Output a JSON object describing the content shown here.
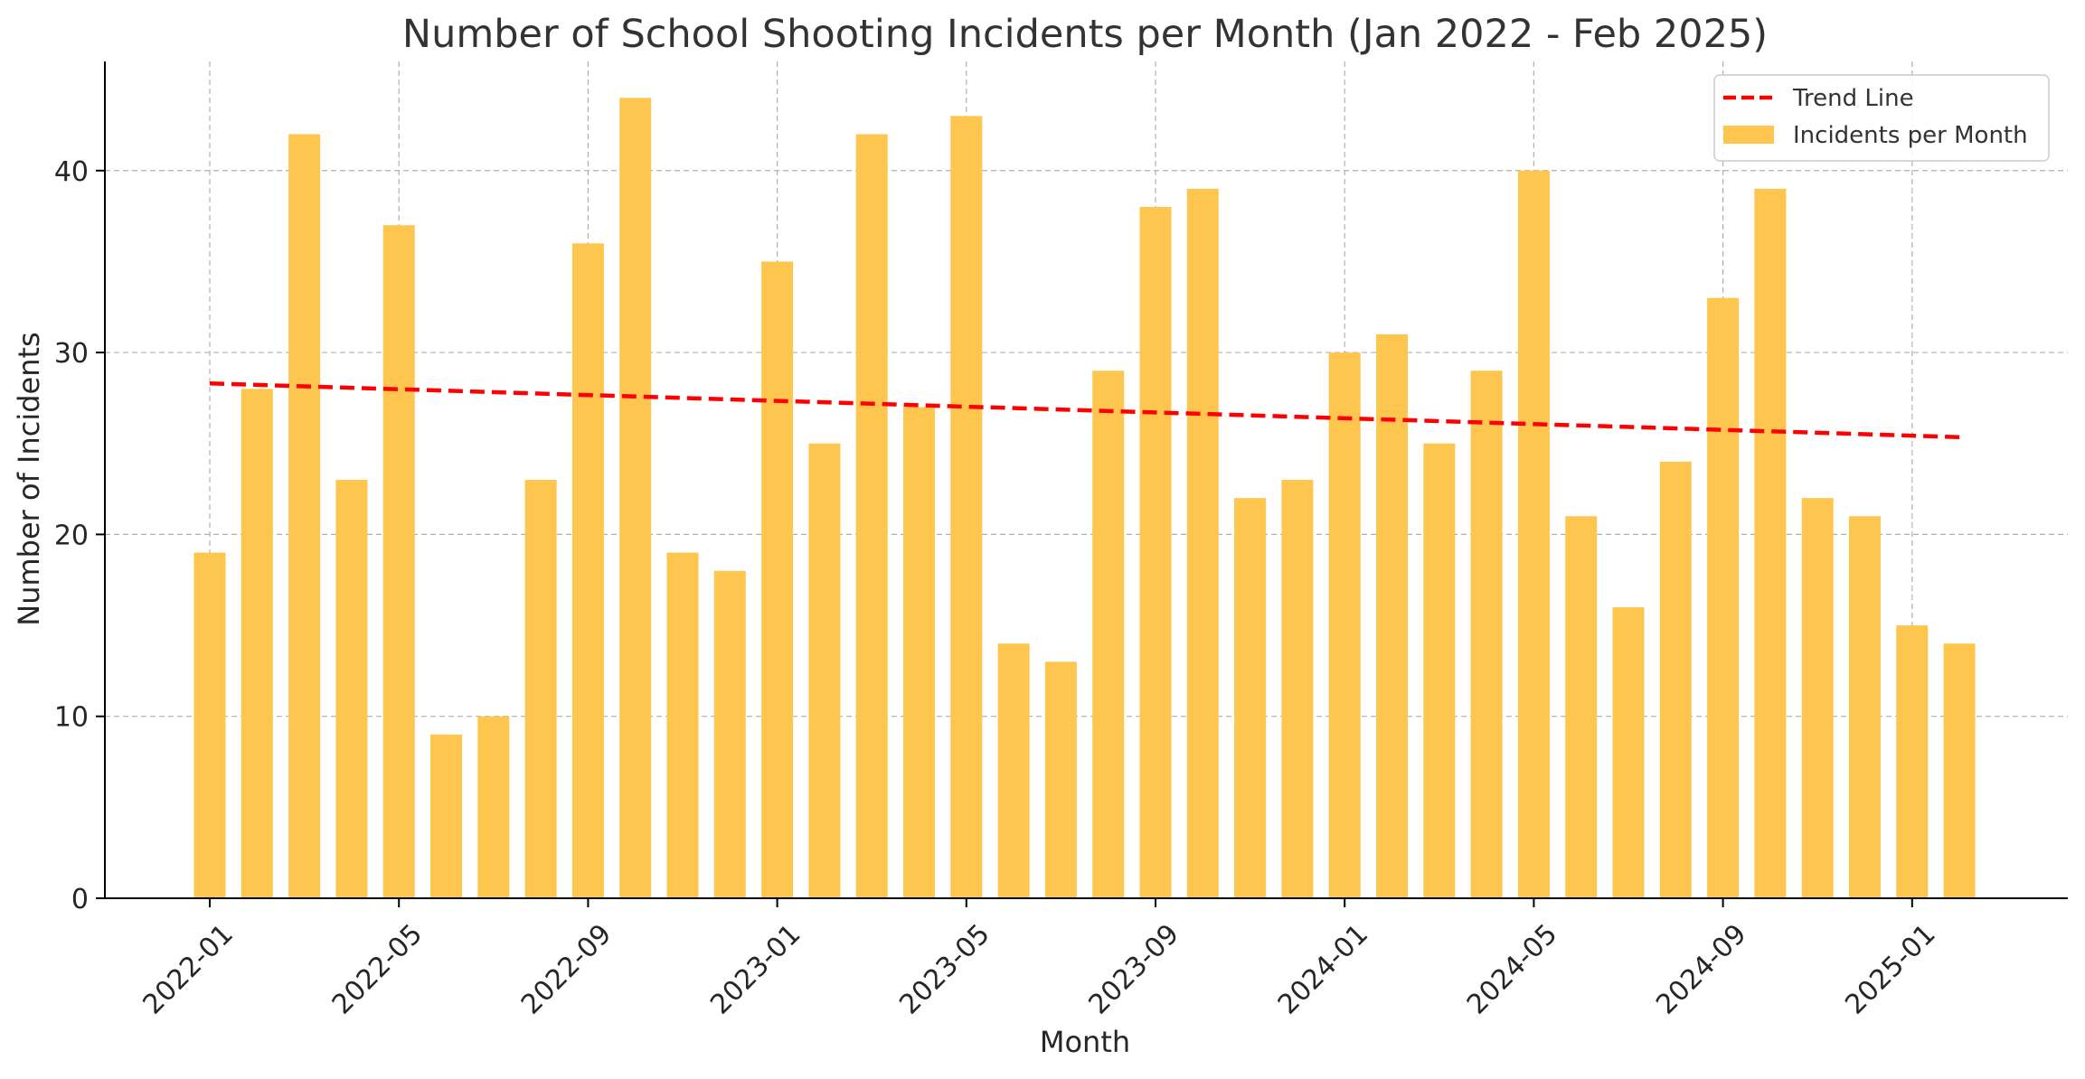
{
  "chart_data": {
    "type": "bar",
    "title": "Number of School Shooting Incidents per Month (Jan 2022 - Feb 2025)",
    "xlabel": "Month",
    "ylabel": "Number of Incidents",
    "ylim": [
      0,
      46
    ],
    "yticks": [
      0,
      10,
      20,
      30,
      40
    ],
    "grid": true,
    "legend_position": "top-right",
    "categories": [
      "2022-01",
      "2022-02",
      "2022-03",
      "2022-04",
      "2022-05",
      "2022-06",
      "2022-07",
      "2022-08",
      "2022-09",
      "2022-10",
      "2022-11",
      "2022-12",
      "2023-01",
      "2023-02",
      "2023-03",
      "2023-04",
      "2023-05",
      "2023-06",
      "2023-07",
      "2023-08",
      "2023-09",
      "2023-10",
      "2023-11",
      "2023-12",
      "2024-01",
      "2024-02",
      "2024-03",
      "2024-04",
      "2024-05",
      "2024-06",
      "2024-07",
      "2024-08",
      "2024-09",
      "2024-10",
      "2024-11",
      "2024-12",
      "2025-01",
      "2025-02"
    ],
    "xtick_labels": [
      "2022-01",
      "2022-05",
      "2022-09",
      "2023-01",
      "2023-05",
      "2023-09",
      "2024-01",
      "2024-05",
      "2024-09",
      "2025-01"
    ],
    "series": [
      {
        "name": "Incidents per Month",
        "type": "bar",
        "color": "#FFC64F",
        "values": [
          19,
          28,
          42,
          23,
          37,
          9,
          10,
          23,
          36,
          44,
          19,
          18,
          35,
          25,
          42,
          27,
          43,
          14,
          13,
          29,
          38,
          39,
          22,
          23,
          30,
          31,
          25,
          29,
          40,
          21,
          16,
          24,
          33,
          39,
          22,
          21,
          15,
          14
        ]
      },
      {
        "name": "Trend Line",
        "type": "line",
        "style": "dashed",
        "color": "#FF0000",
        "x": [
          "2022-01",
          "2025-02"
        ],
        "values": [
          28.3,
          25.35
        ]
      }
    ]
  }
}
